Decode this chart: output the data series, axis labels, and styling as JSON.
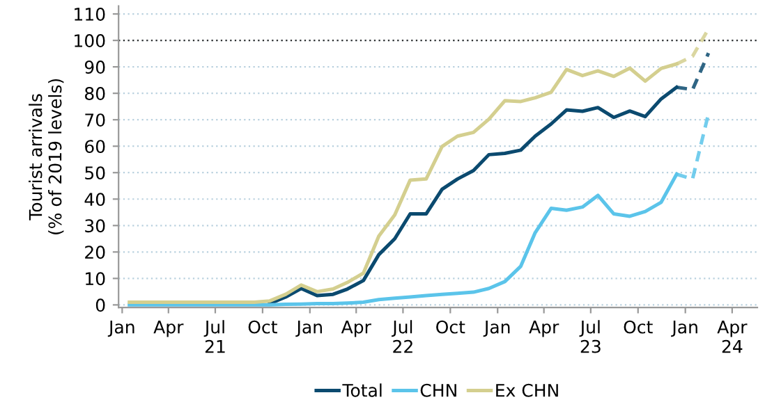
{
  "chart_data": {
    "type": "line",
    "ylabel": "Tourist arrivals\n(% of 2019 levels)",
    "x": [
      "2021-01-15",
      "2021-02-15",
      "2021-03-15",
      "2021-04-15",
      "2021-05-15",
      "2021-06-15",
      "2021-07-15",
      "2021-08-15",
      "2021-09-15",
      "2021-10-15",
      "2021-11-15",
      "2021-12-15",
      "2022-01-15",
      "2022-02-15",
      "2022-03-15",
      "2022-04-15",
      "2022-05-15",
      "2022-06-15",
      "2022-07-15",
      "2022-08-15",
      "2022-09-15",
      "2022-10-15",
      "2022-11-15",
      "2022-12-15",
      "2023-01-15",
      "2023-02-15",
      "2023-03-15",
      "2023-04-15",
      "2023-05-15",
      "2023-06-15",
      "2023-07-15",
      "2023-08-15",
      "2023-09-15",
      "2023-10-15",
      "2023-11-15",
      "2023-12-15"
    ],
    "series": [
      {
        "name": "Total",
        "color": "#0b4a6f",
        "values": [
          null,
          null,
          null,
          null,
          null,
          null,
          null,
          null,
          null,
          0.5,
          3,
          6.2,
          3.5,
          4,
          6,
          9.2,
          19,
          25,
          34.4,
          34.4,
          43.7,
          47.6,
          50.8,
          56.8,
          57.3,
          58.5,
          63.8,
          68.4,
          73.7,
          73.2,
          74.6,
          70.9,
          73.3,
          71.2,
          77.9,
          82.3
        ]
      },
      {
        "name": "CHN",
        "color": "#5bc4ea",
        "values": [
          0,
          0,
          0,
          0,
          0,
          0,
          0,
          0,
          0,
          0,
          0.2,
          0.3,
          0.5,
          0.5,
          0.7,
          1,
          2,
          2.5,
          3,
          3.5,
          4,
          4.4,
          4.8,
          6.2,
          8.8,
          14.6,
          27.3,
          36.5,
          35.8,
          37,
          41.4,
          34.4,
          33.5,
          35.3,
          38.8,
          49.4
        ]
      },
      {
        "name": "Ex CHN",
        "color": "#d4cf8f",
        "values": [
          1,
          1,
          1,
          1,
          1,
          1,
          1,
          1,
          1,
          1.5,
          4,
          7.5,
          5,
          6,
          8.5,
          12,
          26,
          34,
          47.2,
          47.6,
          59.9,
          63.8,
          65.2,
          70.2,
          77.2,
          76.9,
          78.3,
          80.4,
          89,
          86.7,
          88.5,
          86.4,
          89.5,
          84.6,
          89.4,
          91.1
        ]
      },
      {
        "color": "#0b4a6f",
        "line_style": "dashed",
        "x": [
          "2023-12-15",
          "2024-01-15",
          "2024-02-15"
        ],
        "values": [
          82.3,
          81.4,
          95.2
        ]
      },
      {
        "color": "#5bc4ea",
        "line_style": "dashed",
        "x": [
          "2023-12-15",
          "2024-01-15",
          "2024-02-15"
        ],
        "values": [
          49.4,
          47.6,
          72.3
        ]
      },
      {
        "color": "#d4cf8f",
        "line_style": "dashed",
        "x": [
          "2023-12-15",
          "2024-01-15",
          "2024-02-15"
        ],
        "values": [
          91.1,
          94,
          104.4
        ]
      }
    ],
    "line_style": "solid",
    "xlim": [
      "2020-12-25",
      "2024-05-20"
    ],
    "xticks": [
      {
        "value": "2021-01-01",
        "label": "Jan"
      },
      {
        "value": "2021-04-01",
        "label": "Apr"
      },
      {
        "value": "2021-07-01",
        "label": "Jul\n21"
      },
      {
        "value": "2021-10-01",
        "label": "Oct"
      },
      {
        "value": "2022-01-01",
        "label": "Jan"
      },
      {
        "value": "2022-04-01",
        "label": "Apr"
      },
      {
        "value": "2022-07-01",
        "label": "Jul\n22"
      },
      {
        "value": "2022-10-01",
        "label": "Oct"
      },
      {
        "value": "2023-01-01",
        "label": "Jan"
      },
      {
        "value": "2023-04-01",
        "label": "Apr"
      },
      {
        "value": "2023-07-01",
        "label": "Jul\n23"
      },
      {
        "value": "2023-10-01",
        "label": "Oct"
      },
      {
        "value": "2024-01-01",
        "label": "Jan"
      },
      {
        "value": "2024-04-01",
        "label": "Apr\n24"
      }
    ],
    "ylim": [
      -1,
      113
    ],
    "yticks": [
      0,
      10,
      20,
      30,
      40,
      50,
      60,
      70,
      80,
      90,
      100,
      110
    ],
    "ref_lines": [
      {
        "axis": "y",
        "value": 100,
        "color": "#333333",
        "line_style": "dotted"
      }
    ],
    "grid": "y",
    "legend": "bottom"
  }
}
